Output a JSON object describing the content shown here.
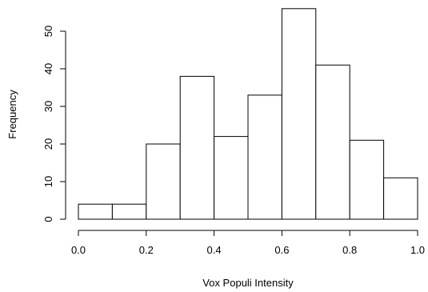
{
  "chart_data": {
    "type": "bar",
    "title": "",
    "xlabel": "Vox Populi Intensity",
    "ylabel": "Frequency",
    "bins": [
      {
        "start": 0.0,
        "end": 0.1,
        "count": 4
      },
      {
        "start": 0.1,
        "end": 0.2,
        "count": 4
      },
      {
        "start": 0.2,
        "end": 0.3,
        "count": 20
      },
      {
        "start": 0.3,
        "end": 0.4,
        "count": 38
      },
      {
        "start": 0.4,
        "end": 0.5,
        "count": 22
      },
      {
        "start": 0.5,
        "end": 0.6,
        "count": 33
      },
      {
        "start": 0.6,
        "end": 0.7,
        "count": 56
      },
      {
        "start": 0.7,
        "end": 0.8,
        "count": 41
      },
      {
        "start": 0.8,
        "end": 0.9,
        "count": 21
      },
      {
        "start": 0.9,
        "end": 1.0,
        "count": 11
      }
    ],
    "xlim": [
      0.0,
      1.0
    ],
    "ylim": [
      0,
      56
    ],
    "x_ticks": [
      "0.0",
      "0.2",
      "0.4",
      "0.6",
      "0.8",
      "1.0"
    ],
    "y_ticks": [
      "0",
      "10",
      "20",
      "30",
      "40",
      "50"
    ],
    "grid": false,
    "bar_fill": "#ffffff",
    "bar_stroke": "#000000"
  }
}
